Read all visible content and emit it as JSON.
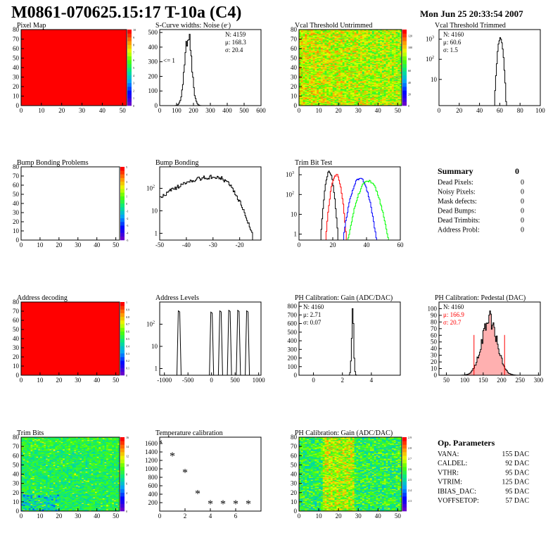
{
  "header": {
    "title": "M0861-070625.15:17 T-10a (C4)",
    "date": "Mon Jun 25 20:33:54 2007"
  },
  "chart_data": [
    {
      "id": "pixel-map",
      "type": "heatmap",
      "title": "Pixel Map",
      "xlim": [
        0,
        52
      ],
      "ylim": [
        0,
        80
      ],
      "xticks": [
        0,
        10,
        20,
        30,
        40,
        50
      ],
      "yticks": [
        0,
        10,
        20,
        30,
        40,
        50,
        60,
        70,
        80
      ],
      "fill": "uniform-max",
      "zlim": [
        0,
        10
      ],
      "zticks": [
        0,
        1,
        2,
        3,
        4,
        5,
        6,
        7,
        8,
        9,
        10
      ]
    },
    {
      "id": "scurve-widths",
      "type": "histogram",
      "title": "S-Curve widths: Noise (e",
      "title_superscript": "-",
      "title_suffix": ")",
      "xlim": [
        0,
        600
      ],
      "ylim": [
        0,
        520
      ],
      "xticks": [
        0,
        100,
        200,
        300,
        400,
        500,
        600
      ],
      "yticks": [
        0,
        100,
        200,
        300,
        400,
        500
      ],
      "stats": [
        "N: 4159",
        "μ: 168.3",
        "σ: 20.4"
      ],
      "annotation": "<= 1",
      "peaks": [
        {
          "mu": 168.3,
          "sigma": 20.4,
          "height": 490
        }
      ]
    },
    {
      "id": "vcal-untrimmed",
      "type": "heatmap",
      "title": "Vcal Threshold Untrimmed",
      "xlim": [
        0,
        52
      ],
      "ylim": [
        0,
        80
      ],
      "xticks": [
        0,
        10,
        20,
        30,
        40,
        50
      ],
      "yticks": [
        0,
        10,
        20,
        30,
        40,
        50,
        60,
        70,
        80
      ],
      "fill": "noise-warm",
      "zlim": [
        0,
        130
      ],
      "zticks": [
        0,
        20,
        40,
        60,
        80,
        100,
        120
      ]
    },
    {
      "id": "vcal-trimmed",
      "type": "histogram",
      "title": "Vcal Threshold Trimmed",
      "xlim": [
        0,
        100
      ],
      "ylim": [
        0.5,
        3000
      ],
      "logy": true,
      "xticks": [
        0,
        20,
        40,
        60,
        80,
        100
      ],
      "yticks": [
        10,
        100,
        1000
      ],
      "stats": [
        "N: 4160",
        "μ: 60.6",
        "σ:  1.5"
      ],
      "peaks": [
        {
          "mu": 60.6,
          "sigma": 1.5,
          "height": 1100
        }
      ]
    },
    {
      "id": "bump-problems",
      "type": "heatmap",
      "title": "Bump Bonding Problems",
      "xlim": [
        0,
        52
      ],
      "ylim": [
        0,
        80
      ],
      "xticks": [
        0,
        10,
        20,
        30,
        40,
        50
      ],
      "yticks": [
        0,
        10,
        20,
        30,
        40,
        50,
        60,
        70,
        80
      ],
      "fill": "empty",
      "zlim": [
        -5,
        5
      ],
      "zticks": [
        -5,
        -4,
        -3,
        -2,
        -1,
        0,
        1,
        2,
        3,
        4,
        5
      ]
    },
    {
      "id": "bump-bonding",
      "type": "histogram",
      "title": "Bump Bonding",
      "xlim": [
        -50,
        -12
      ],
      "ylim": [
        0.5,
        900
      ],
      "logy": true,
      "xticks": [
        -50,
        -40,
        -30,
        -20
      ],
      "yticks": [
        1,
        10,
        100
      ],
      "peaks": [
        {
          "mu": -29,
          "sigma": 6.5,
          "height": 330
        }
      ]
    },
    {
      "id": "trim-bit-test",
      "type": "histogram",
      "title": "Trim Bit Test",
      "xlim": [
        0,
        60
      ],
      "ylim": [
        0.5,
        2500
      ],
      "logy": true,
      "xticks": [
        0,
        20,
        40,
        60
      ],
      "yticks": [
        1,
        10,
        100,
        1000
      ],
      "peaks": [
        {
          "mu": 18,
          "sigma": 1.3,
          "height": 1400,
          "color": "#000000"
        },
        {
          "mu": 22,
          "sigma": 1.6,
          "height": 1000,
          "color": "#ff0000"
        },
        {
          "mu": 36,
          "sigma": 2.6,
          "height": 650,
          "color": "#0000ff"
        },
        {
          "mu": 41,
          "sigma": 3.2,
          "height": 500,
          "color": "#00ff00"
        }
      ]
    },
    {
      "id": "address-decoding",
      "type": "heatmap",
      "title": "Address decoding",
      "xlim": [
        0,
        52
      ],
      "ylim": [
        0,
        80
      ],
      "xticks": [
        0,
        10,
        20,
        30,
        40,
        50
      ],
      "yticks": [
        0,
        10,
        20,
        30,
        40,
        50,
        60,
        70,
        80
      ],
      "fill": "uniform-max",
      "zlim": [
        0,
        1
      ],
      "zticks": [
        0,
        0.1,
        0.2,
        0.3,
        0.4,
        0.5,
        0.6,
        0.7,
        0.8,
        0.9,
        1
      ]
    },
    {
      "id": "address-levels",
      "type": "histogram",
      "title": "Address Levels",
      "xlim": [
        -1100,
        1050
      ],
      "ylim": [
        0.5,
        1000
      ],
      "logy": true,
      "xticks": [
        -1000,
        -500,
        0,
        500,
        1000
      ],
      "yticks": [
        1,
        10,
        100
      ],
      "spikes": [
        {
          "x": -690,
          "height": 400
        },
        {
          "x": 0,
          "height": 350
        },
        {
          "x": 190,
          "height": 400
        },
        {
          "x": 380,
          "height": 420
        },
        {
          "x": 570,
          "height": 420
        },
        {
          "x": 760,
          "height": 400
        }
      ]
    },
    {
      "id": "ph-gain",
      "type": "histogram",
      "title": "PH Calibration: Gain (ADC/DAC)",
      "xlim": [
        -1,
        6
      ],
      "ylim": [
        0,
        850
      ],
      "xticks": [
        0,
        2,
        4
      ],
      "yticks": [
        0,
        100,
        200,
        300,
        400,
        500,
        600,
        700,
        800
      ],
      "stats": [
        "N: 4160",
        "μ: 2.71",
        "σ: 0.07"
      ],
      "peaks": [
        {
          "mu": 2.71,
          "sigma": 0.07,
          "height": 760
        }
      ]
    },
    {
      "id": "ph-pedestal",
      "type": "histogram",
      "title": "PH Calibration: Pedestal (DAC)",
      "xlim": [
        30,
        305
      ],
      "ylim": [
        0,
        110
      ],
      "xticks": [
        50,
        100,
        150,
        200,
        250,
        300
      ],
      "yticks": [
        0,
        10,
        20,
        30,
        40,
        50,
        60,
        70,
        80,
        90,
        100
      ],
      "stats": [
        "N: 4160",
        "μ: 166.9",
        "σ: 20.7"
      ],
      "stat_colors": [
        "#000000",
        "#ff0000",
        "#ff0000"
      ],
      "peaks": [
        {
          "mu": 166.9,
          "sigma": 20.7,
          "height": 85
        }
      ],
      "cut_lines": [
        125,
        208
      ]
    },
    {
      "id": "trim-bits",
      "type": "heatmap",
      "title": "Trim Bits",
      "xlim": [
        0,
        52
      ],
      "ylim": [
        0,
        80
      ],
      "xticks": [
        0,
        10,
        20,
        30,
        40,
        50
      ],
      "yticks": [
        0,
        10,
        20,
        30,
        40,
        50,
        60,
        70,
        80
      ],
      "fill": "noise-green",
      "zlim": [
        0,
        16
      ],
      "zticks": [
        0,
        2,
        4,
        6,
        8,
        10,
        12,
        14,
        16
      ]
    },
    {
      "id": "temperature-calibration",
      "type": "scatter",
      "title": "Temperature calibration",
      "xlim": [
        0,
        8
      ],
      "ylim": [
        0,
        1750
      ],
      "xticks": [
        0,
        2,
        4,
        6
      ],
      "yticks": [
        200,
        400,
        600,
        800,
        1000,
        1200,
        1400,
        1600
      ],
      "x": [
        0,
        1,
        2,
        3,
        4,
        5,
        6,
        7
      ],
      "y": [
        1580,
        1280,
        890,
        390,
        150,
        150,
        150,
        150
      ]
    },
    {
      "id": "ph-gain-map",
      "type": "heatmap",
      "title": "PH Calibration: Gain (ADC/DAC)",
      "xlim": [
        0,
        52
      ],
      "ylim": [
        0,
        80
      ],
      "xticks": [
        0,
        10,
        20,
        30,
        40,
        50
      ],
      "yticks": [
        0,
        10,
        20,
        30,
        40,
        50,
        60,
        70,
        80
      ],
      "fill": "noise-gain",
      "zlim": [
        2.2,
        2.9
      ],
      "zticks": [
        2.3,
        2.4,
        2.5,
        2.6,
        2.7,
        2.8,
        2.9
      ]
    }
  ],
  "summary": {
    "title": "Summary",
    "value": "0",
    "rows": [
      {
        "label": "Dead Pixels:",
        "value": "0"
      },
      {
        "label": "Noisy Pixels:",
        "value": "0"
      },
      {
        "label": "Mask defects:",
        "value": "0"
      },
      {
        "label": "Dead Bumps:",
        "value": "0"
      },
      {
        "label": "Dead Trimbits:",
        "value": "0"
      },
      {
        "label": "Address Probl:",
        "value": "0"
      }
    ]
  },
  "op_params": {
    "title": "Op. Parameters",
    "rows": [
      {
        "label": "VANA:",
        "value": "155 DAC"
      },
      {
        "label": "CALDEL:",
        "value": "92 DAC"
      },
      {
        "label": "VTHR:",
        "value": "95 DAC"
      },
      {
        "label": "VTRIM:",
        "value": "125 DAC"
      },
      {
        "label": "IBIAS_DAC:",
        "value": "95 DAC"
      },
      {
        "label": "VOFFSETOP:",
        "value": "57 DAC"
      }
    ]
  }
}
